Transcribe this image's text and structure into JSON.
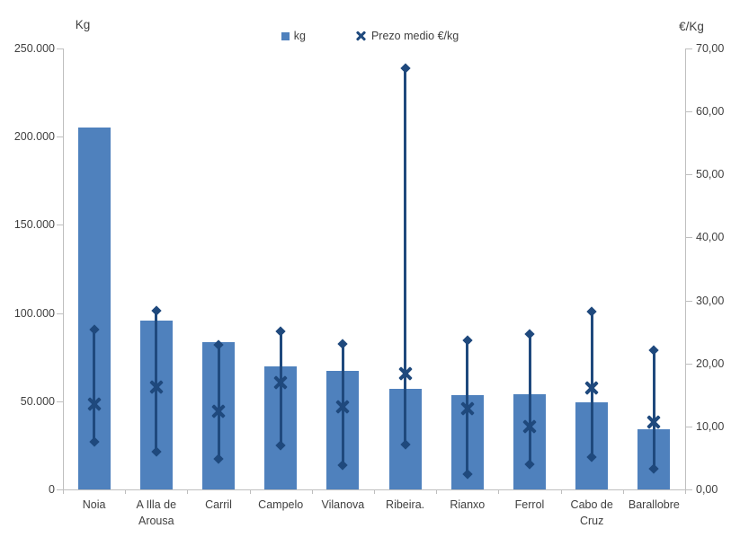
{
  "chart_data": {
    "type": "bar",
    "categories": [
      "Noia",
      "A Illa de Arousa",
      "Carril",
      "Campelo",
      "Vilanova",
      "Ribeira.",
      "Rianxo",
      "Ferrol",
      "Cabo de Cruz",
      "Barallobre"
    ],
    "series": [
      {
        "name": "kg",
        "type": "bar",
        "axis": "left",
        "values": [
          205000,
          95500,
          83500,
          70000,
          67000,
          57000,
          53500,
          54000,
          49500,
          34000
        ]
      },
      {
        "name": "Prezo medio €/kg",
        "type": "hilo-x-marker",
        "axis": "right",
        "values": [
          13.6,
          16.2,
          12.4,
          16.9,
          13.1,
          18.4,
          12.8,
          10.0,
          16.1,
          10.7
        ],
        "high": [
          25.4,
          28.4,
          23.0,
          25.1,
          23.1,
          66.8,
          23.7,
          24.6,
          28.2,
          22.1
        ],
        "low": [
          7.6,
          6.0,
          4.8,
          7.0,
          3.9,
          7.1,
          2.4,
          4.0,
          5.1,
          3.3
        ]
      }
    ],
    "y_left": {
      "label": "Kg",
      "min": 0,
      "max": 250000,
      "ticks": [
        "0",
        "50.000",
        "100.000",
        "150.000",
        "200.000",
        "250.000"
      ]
    },
    "y_right": {
      "label": "€/Kg",
      "min": 0,
      "max": 70,
      "ticks": [
        "0,00",
        "10,00",
        "20,00",
        "30,00",
        "40,00",
        "50,00",
        "60,00",
        "70,00"
      ]
    },
    "legend_position": "top",
    "grid": false,
    "colors": {
      "bar": "#4F81BD",
      "marker": "#1F497D",
      "axis_line": "#BFBFBF",
      "text": "#404040"
    }
  }
}
